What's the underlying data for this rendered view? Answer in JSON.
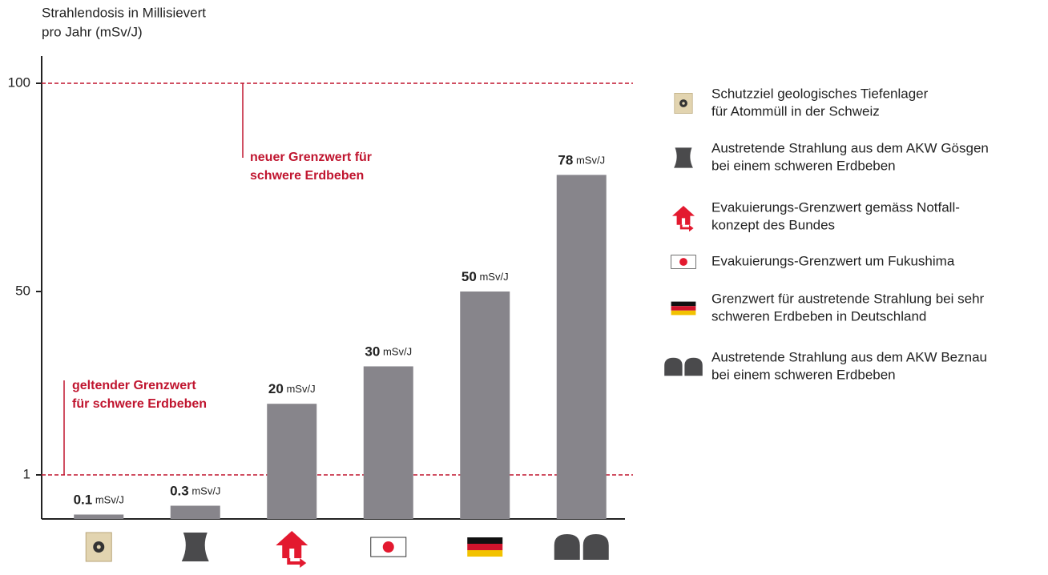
{
  "chart_data": {
    "type": "bar",
    "y_label": [
      "Strahlendosis in Millisievert",
      "pro Jahr (mSv/J)"
    ],
    "categories": [
      null,
      null,
      null,
      null,
      null,
      null
    ],
    "values": [
      0.1,
      0.3,
      20,
      30,
      50,
      78
    ],
    "value_labels": [
      "0.1 mSv/J",
      "0.3 mSv/J",
      "20 mSv/J",
      "30 mSv/J",
      "50 mSv/J",
      "78 mSv/J"
    ],
    "color": "#87858b",
    "scale": "piecewise",
    "ylim": [
      0,
      106
    ],
    "yticks": [
      1,
      50,
      100
    ],
    "reference_lines": [
      {
        "value": 100,
        "color": "#c0152f"
      },
      {
        "value": 1,
        "color": "#c0152f"
      }
    ],
    "annotations": [
      {
        "lines": [
          "neuer Grenzwert für",
          "schwere Erdbeben"
        ],
        "value": 100
      },
      {
        "lines": [
          "geltender Grenzwert",
          "für schwere Erdbeben"
        ],
        "value": 1
      }
    ],
    "legend": [
      {
        "lines": [
          "Schutzziel geologisches Tiefenlager",
          "für Atommüll in der Schweiz"
        ]
      },
      {
        "lines": [
          "Austretende Strahlung aus dem AKW Gösgen",
          "bei einem schweren Erdbeben"
        ]
      },
      {
        "lines": [
          "Evakuierungs-Grenzwert gemäss Notfall-",
          "konzept des Bundes"
        ]
      },
      {
        "lines": [
          "Evakuierungs-Grenzwert um Fukushima"
        ]
      },
      {
        "lines": [
          "Grenzwert für austretende Strahlung bei sehr",
          "schweren Erdbeben in Deutschland"
        ]
      },
      {
        "lines": [
          "Austretende Strahlung aus dem AKW Beznau",
          "bei einem schweren Erdbeben"
        ]
      }
    ]
  }
}
